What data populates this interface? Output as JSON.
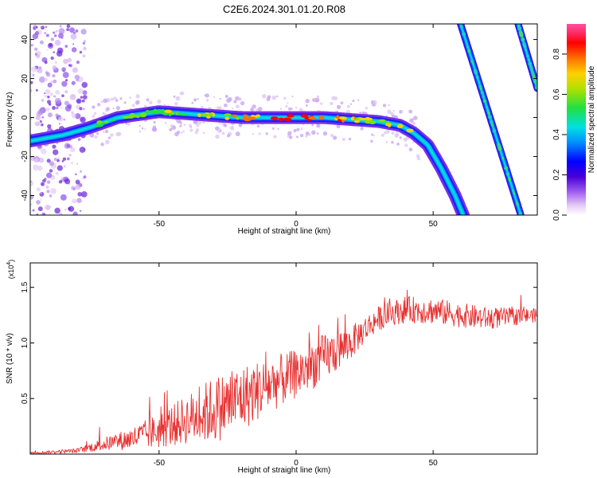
{
  "title": "C2E6.2024.301.01.20.R08",
  "chart_data": [
    {
      "type": "heatmap",
      "xlabel": "Height of straight line (km)",
      "ylabel": "Frequency (Hz)",
      "xlim": [
        -97,
        88
      ],
      "ylim": [
        -50,
        48
      ],
      "xticks": [
        -50,
        0,
        50
      ],
      "yticks": [
        -40,
        -20,
        0,
        20,
        40
      ],
      "colorbar": {
        "label": "Normalized spectral amplitude",
        "range": [
          0,
          0.95
        ],
        "ticks": [
          "0.0",
          "0.2",
          "0.4",
          "0.6",
          "0.8"
        ],
        "ticks_values": [
          0,
          0.2,
          0.4,
          0.6,
          0.8
        ]
      },
      "traces": [
        {
          "name_hint": "central band",
          "x": [
            -97,
            -85,
            -75,
            -65,
            -55,
            -50,
            -40,
            -30,
            -20,
            -10,
            0,
            10,
            20,
            30,
            38,
            43,
            48,
            53,
            58,
            61
          ],
          "y": [
            -12,
            -9,
            -5,
            0,
            2,
            3,
            2,
            1,
            0,
            0,
            0,
            0,
            -1,
            -2,
            -4,
            -8,
            -14,
            -26,
            -40,
            -50
          ]
        },
        {
          "name_hint": "diagonal band 1",
          "x": [
            60,
            82
          ],
          "y": [
            48,
            -50
          ]
        },
        {
          "name_hint": "diagonal band 2",
          "x": [
            81,
            88
          ],
          "y": [
            48,
            15
          ]
        }
      ]
    },
    {
      "type": "line",
      "xlabel": "Height of straight line (km)",
      "ylabel": "SNR (10 * v/v)",
      "y_multiplier": "(x10",
      "y_multiplier_exp": "4",
      "y_multiplier_close": ")",
      "xlim": [
        -97,
        88
      ],
      "ylim": [
        0,
        1.72
      ],
      "xticks": [
        -50,
        0,
        50
      ],
      "yticks": [
        0.5,
        1.0,
        1.5
      ],
      "ytick_labels": [
        "0.5",
        "1.0",
        "1.5"
      ],
      "color": "#e83030",
      "envelope": {
        "x": [
          -97,
          -80,
          -70,
          -60,
          -50,
          -40,
          -30,
          -20,
          -10,
          0,
          10,
          20,
          25,
          30,
          35,
          40,
          50,
          60,
          70,
          88
        ],
        "mean": [
          0.01,
          0.03,
          0.09,
          0.14,
          0.21,
          0.31,
          0.4,
          0.5,
          0.62,
          0.72,
          0.86,
          1.0,
          1.12,
          1.22,
          1.27,
          1.3,
          1.29,
          1.25,
          1.22,
          1.25
        ],
        "noise": [
          0.01,
          0.02,
          0.06,
          0.1,
          0.16,
          0.22,
          0.3,
          0.3,
          0.25,
          0.22,
          0.22,
          0.15,
          0.12,
          0.11,
          0.11,
          0.12,
          0.12,
          0.11,
          0.1,
          0.06
        ]
      }
    }
  ]
}
